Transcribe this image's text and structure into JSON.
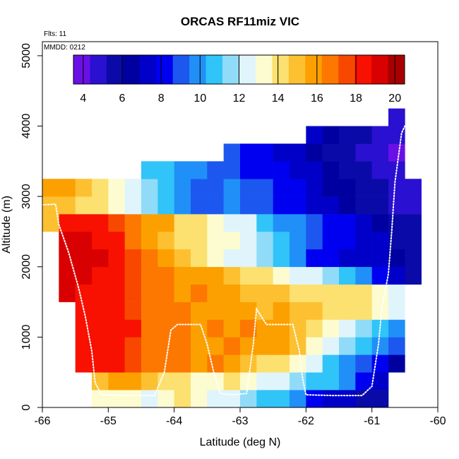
{
  "chart_data": {
    "type": "heatmap",
    "title": "ORCAS RF11miz VIC",
    "flights_label": "Flts: 11",
    "date_label": "MMDD: 0212",
    "xlabel": "Latitude (deg N)",
    "ylabel": "Altitude (m)",
    "xlim": [
      -66,
      -60
    ],
    "ylim": [
      0,
      5200
    ],
    "x_ticks": [
      -66,
      -65,
      -64,
      -63,
      -62,
      -61,
      -60
    ],
    "y_ticks": [
      0,
      1000,
      2000,
      3000,
      4000,
      5000
    ],
    "grid": false,
    "colorbar": {
      "location": "top-left",
      "min": 3.5,
      "max": 20.5,
      "ticks": [
        4,
        6,
        8,
        10,
        12,
        14,
        16,
        18,
        20
      ],
      "colors": [
        "#6a10e6",
        "#2a10d0",
        "#0a0aa8",
        "#0000a0",
        "#0000c8",
        "#0000f0",
        "#1c58f0",
        "#2090f8",
        "#30c4f8",
        "#90dcf8",
        "#e0f4fc",
        "#fcfcd0",
        "#fce070",
        "#fcc030",
        "#fca000",
        "#fc7800",
        "#f84800",
        "#f81000",
        "#d80000",
        "#a80000"
      ]
    },
    "cells": {
      "lat_step": 0.25,
      "alt_step": 250,
      "rows": [
        {
          "alt": 0,
          "lat_start": -65.25,
          "values": [
            13.0,
            13.5,
            13.0,
            12.5,
            13.2,
            13.8,
            13.0,
            12.5,
            12.0,
            11.5,
            11.0,
            11.0,
            10.0,
            8.5,
            7.5,
            7.0,
            6.0,
            5.5
          ]
        },
        {
          "alt": 250,
          "lat_start": -65.25,
          "values": [
            15.0,
            16.0,
            15.5,
            15.0,
            14.5,
            14.0,
            13.5,
            13.5,
            14.0,
            13.0,
            12.5,
            12.0,
            11.5,
            11.0,
            10.5,
            9.5,
            8.5,
            7.0
          ]
        },
        {
          "alt": 500,
          "lat_start": -65.5,
          "values": [
            18.5,
            18.3,
            18.0,
            17.5,
            17.0,
            16.5,
            16.5,
            16.0,
            17.0,
            16.0,
            15.0,
            14.5,
            14.0,
            13.5,
            12.5,
            10.5,
            10.0,
            9.0,
            8.5,
            6.5
          ]
        },
        {
          "alt": 750,
          "lat_start": -65.5,
          "values": [
            18.5,
            18.5,
            18.0,
            17.5,
            17.0,
            17.0,
            16.5,
            16.0,
            16.0,
            16.5,
            16.0,
            16.0,
            15.5,
            15.0,
            13.5,
            12.5,
            11.5,
            11.0,
            9.5,
            9.0
          ]
        },
        {
          "alt": 1000,
          "lat_start": -65.5,
          "values": [
            18.5,
            18.5,
            18.0,
            18.0,
            17.0,
            16.5,
            16.5,
            16.0,
            16.5,
            16.0,
            16.5,
            15.5,
            15.5,
            15.0,
            14.5,
            13.0,
            12.5,
            11.5,
            10.5,
            9.5
          ]
        },
        {
          "alt": 1250,
          "lat_start": -65.5,
          "values": [
            18.5,
            18.5,
            18.0,
            17.5,
            17.0,
            16.5,
            16.5,
            16.0,
            16.0,
            15.5,
            15.5,
            15.0,
            15.5,
            15.0,
            15.0,
            14.5,
            14.0,
            14.0,
            13.5,
            12.5
          ]
        },
        {
          "alt": 1500,
          "lat_start": -65.75,
          "values": [
            19.0,
            18.5,
            18.5,
            18.0,
            17.5,
            17.0,
            16.5,
            16.0,
            16.5,
            16.0,
            15.5,
            15.0,
            15.0,
            15.0,
            14.5,
            14.5,
            14.5,
            14.0,
            14.0,
            13.5,
            12.5
          ]
        },
        {
          "alt": 1750,
          "lat_start": -65.75,
          "values": [
            19.5,
            19.0,
            18.5,
            18.5,
            17.5,
            17.0,
            16.5,
            16.0,
            16.0,
            15.5,
            15.0,
            14.5,
            14.0,
            13.5,
            12.5,
            12.0,
            11.5,
            11.0,
            9.5,
            8.5,
            7.0,
            6.0
          ]
        },
        {
          "alt": 2000,
          "lat_start": -65.75,
          "values": [
            19.5,
            19.0,
            19.0,
            18.5,
            17.5,
            16.5,
            15.5,
            15.0,
            14.5,
            13.5,
            12.5,
            12.0,
            11.5,
            10.5,
            9.5,
            8.5,
            8.0,
            7.5,
            7.5,
            7.0,
            6.5,
            6.0
          ]
        },
        {
          "alt": 2250,
          "lat_start": -65.75,
          "values": [
            19.5,
            19.0,
            18.5,
            18.0,
            17.0,
            16.0,
            15.0,
            14.5,
            14.0,
            13.5,
            13.0,
            12.5,
            11.5,
            10.5,
            9.5,
            9.0,
            8.5,
            8.0,
            7.5,
            7.0,
            6.0,
            5.5
          ]
        },
        {
          "alt": 2500,
          "lat_start": -65.75,
          "values": [
            18.5,
            18.5,
            18.0,
            17.5,
            17.0,
            16.0,
            15.5,
            14.5,
            14.0,
            13.5,
            12.5,
            12.0,
            11.0,
            10.0,
            9.5,
            9.0,
            8.5,
            8.0,
            7.0,
            6.5,
            6.0,
            5.5
          ]
        },
        {
          "alt": 2500,
          "lat_start": -66.0,
          "values": [
            15.0
          ]
        },
        {
          "alt": 2750,
          "lat_start": -66.0,
          "values": [
            15.0,
            15.0,
            14.5,
            14.0,
            13.5,
            12.5,
            11.5,
            11.0,
            10.0,
            9.0,
            9.0,
            9.5,
            9.0,
            9.0,
            8.5,
            8.0,
            7.0,
            7.0,
            6.5,
            6.0,
            5.5,
            5.0,
            4.5
          ]
        },
        {
          "alt": 3000,
          "lat_start": -66.0,
          "values": [
            15.5,
            15.5,
            15.0,
            14.5,
            13.5,
            12.5,
            11.5,
            11.0,
            10.0,
            9.0,
            9.0,
            9.5,
            9.0,
            9.0,
            8.5,
            8.0,
            7.0,
            6.5,
            6.5,
            6.0,
            5.5,
            5.0,
            4.5
          ]
        },
        {
          "alt": 3250,
          "lat_start": -64.5,
          "values": [
            11.0,
            10.5,
            10.0,
            9.5,
            9.0,
            9.0,
            8.5,
            8.5,
            8.0,
            7.5,
            7.0,
            6.5,
            6.0,
            5.5,
            5.0,
            4.5
          ]
        },
        {
          "alt": 3500,
          "lat_start": -63.25,
          "values": [
            9.0,
            8.5,
            8.0,
            7.5,
            7.0,
            6.5,
            6.0,
            5.5,
            5.0,
            4.5,
            4.0
          ]
        },
        {
          "alt": 3750,
          "lat_start": -62.0,
          "values": [
            7.0,
            6.5,
            6.0,
            5.5,
            5.0,
            4.5
          ]
        },
        {
          "alt": 4000,
          "lat_start": -60.75,
          "values": [
            5.0
          ]
        }
      ]
    },
    "flight_track": {
      "color": "#ffffff",
      "points": [
        [
          -66.0,
          2880
        ],
        [
          -65.8,
          2890
        ],
        [
          -65.75,
          2600
        ],
        [
          -65.6,
          2200
        ],
        [
          -65.45,
          1700
        ],
        [
          -65.35,
          1300
        ],
        [
          -65.25,
          800
        ],
        [
          -65.2,
          350
        ],
        [
          -65.1,
          180
        ],
        [
          -64.7,
          170
        ],
        [
          -64.3,
          170
        ],
        [
          -64.15,
          500
        ],
        [
          -64.05,
          1100
        ],
        [
          -63.95,
          1180
        ],
        [
          -63.6,
          1180
        ],
        [
          -63.5,
          900
        ],
        [
          -63.4,
          500
        ],
        [
          -63.3,
          200
        ],
        [
          -63.1,
          180
        ],
        [
          -62.9,
          200
        ],
        [
          -62.8,
          900
        ],
        [
          -62.75,
          1400
        ],
        [
          -62.6,
          1180
        ],
        [
          -62.2,
          1180
        ],
        [
          -62.1,
          800
        ],
        [
          -62.05,
          400
        ],
        [
          -62.0,
          180
        ],
        [
          -61.6,
          170
        ],
        [
          -61.15,
          170
        ],
        [
          -61.0,
          300
        ],
        [
          -60.9,
          900
        ],
        [
          -60.85,
          1400
        ],
        [
          -60.75,
          1900
        ],
        [
          -60.7,
          2500
        ],
        [
          -60.65,
          3200
        ],
        [
          -60.55,
          3900
        ],
        [
          -60.5,
          4000
        ]
      ]
    }
  }
}
